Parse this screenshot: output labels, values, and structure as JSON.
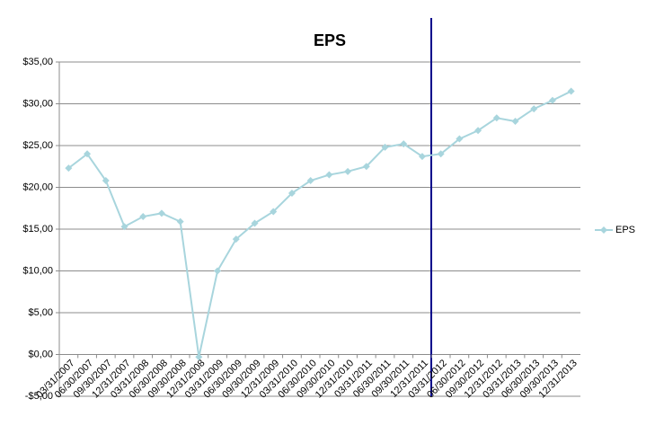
{
  "chart_data": {
    "type": "line",
    "title": "EPS",
    "categories": [
      "03/31/2007",
      "06/30/2007",
      "09/30/2007",
      "12/31/2007",
      "03/31/2008",
      "06/30/2008",
      "09/30/2008",
      "12/31/2008",
      "03/31/2009",
      "06/30/2009",
      "09/30/2009",
      "12/31/2009",
      "03/31/2010",
      "06/30/2010",
      "09/30/2010",
      "12/31/2010",
      "03/31/2011",
      "06/30/2011",
      "09/30/2011",
      "12/31/2011",
      "03/31/2012",
      "06/30/2012",
      "09/30/2012",
      "12/31/2012",
      "03/31/2013",
      "06/30/2013",
      "09/30/2013",
      "12/31/2013"
    ],
    "series": [
      {
        "name": "EPS",
        "color": "#a8d5dd",
        "values": [
          22.3,
          24.0,
          20.8,
          15.3,
          16.5,
          16.9,
          15.9,
          -0.3,
          10.0,
          13.8,
          15.7,
          17.1,
          19.3,
          20.8,
          21.5,
          21.9,
          22.5,
          24.8,
          25.2,
          23.7,
          24.0,
          25.8,
          26.8,
          28.3,
          27.9,
          29.4,
          30.4,
          31.5
        ]
      }
    ],
    "ylim": [
      -5,
      35
    ],
    "yticks": [
      {
        "value": -5,
        "label": "-$5,00"
      },
      {
        "value": 0,
        "label": "$0,00"
      },
      {
        "value": 5,
        "label": "$5,00"
      },
      {
        "value": 10,
        "label": "$10,00"
      },
      {
        "value": 15,
        "label": "$15,00"
      },
      {
        "value": 20,
        "label": "$20,00"
      },
      {
        "value": 25,
        "label": "$25,00"
      },
      {
        "value": 30,
        "label": "$30,00"
      },
      {
        "value": 35,
        "label": "$35,00"
      }
    ],
    "grid": true,
    "legend": "right"
  }
}
